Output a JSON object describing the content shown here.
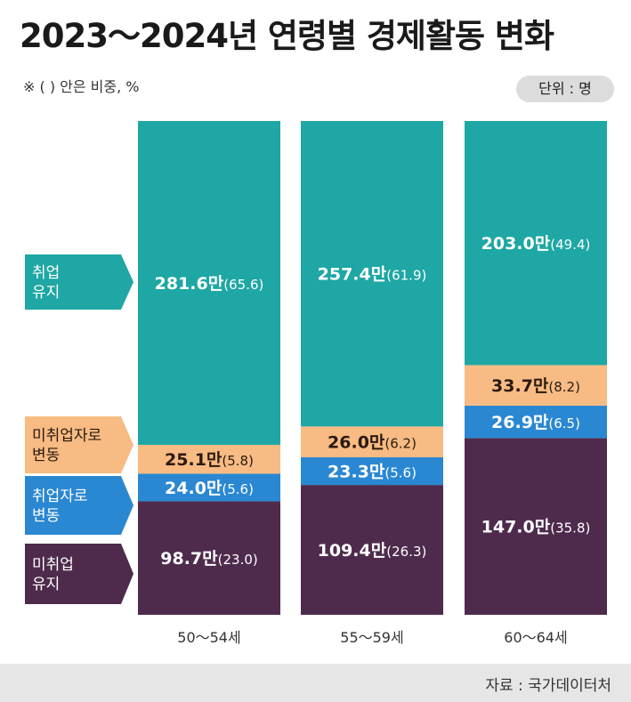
{
  "title": "2023～2024년 연령별 경제활동 변화",
  "note": "※ (  ) 안은 비중, %",
  "unit": "단위 : 명",
  "source": "자료 : 국가데이터처",
  "colors": {
    "취업유지": "#1ea7a4",
    "미취업자로변동": "#f7bb83",
    "취업자로변동": "#2a87d2",
    "미취업유지": "#4e2b4d"
  },
  "chart_data": {
    "type": "bar",
    "stacked": true,
    "categories": [
      "50～54세",
      "55～59세",
      "60～64세"
    ],
    "series": [
      {
        "key": "미취업유지",
        "name": "미취업\n유지",
        "values": [
          98.7,
          109.4,
          147.0
        ],
        "shares": [
          23.0,
          26.3,
          35.8
        ]
      },
      {
        "key": "취업자로변동",
        "name": "취업자로\n변동",
        "values": [
          24.0,
          23.3,
          26.9
        ],
        "shares": [
          5.6,
          5.6,
          6.5
        ]
      },
      {
        "key": "미취업자로변동",
        "name": "미취업자로\n변동",
        "values": [
          25.1,
          26.0,
          33.7
        ],
        "shares": [
          5.8,
          6.2,
          8.2
        ]
      },
      {
        "key": "취업유지",
        "name": "취업\n유지",
        "values": [
          281.6,
          257.4,
          203.0
        ],
        "shares": [
          65.6,
          61.9,
          49.4
        ]
      }
    ],
    "value_suffix": "만"
  }
}
